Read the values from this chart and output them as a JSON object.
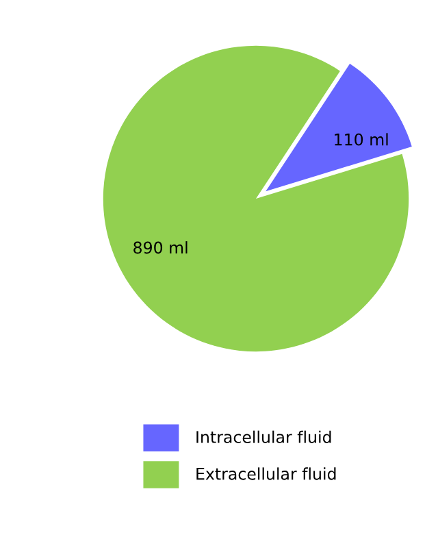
{
  "chart_data": {
    "type": "pie",
    "categories": [
      "Intracellular fluid",
      "Extracellular fluid"
    ],
    "values": [
      110,
      890
    ],
    "colors": [
      "#6666ff",
      "#92d050"
    ],
    "value_labels": [
      "110 ml",
      "890 ml"
    ],
    "legend": "bottom"
  }
}
